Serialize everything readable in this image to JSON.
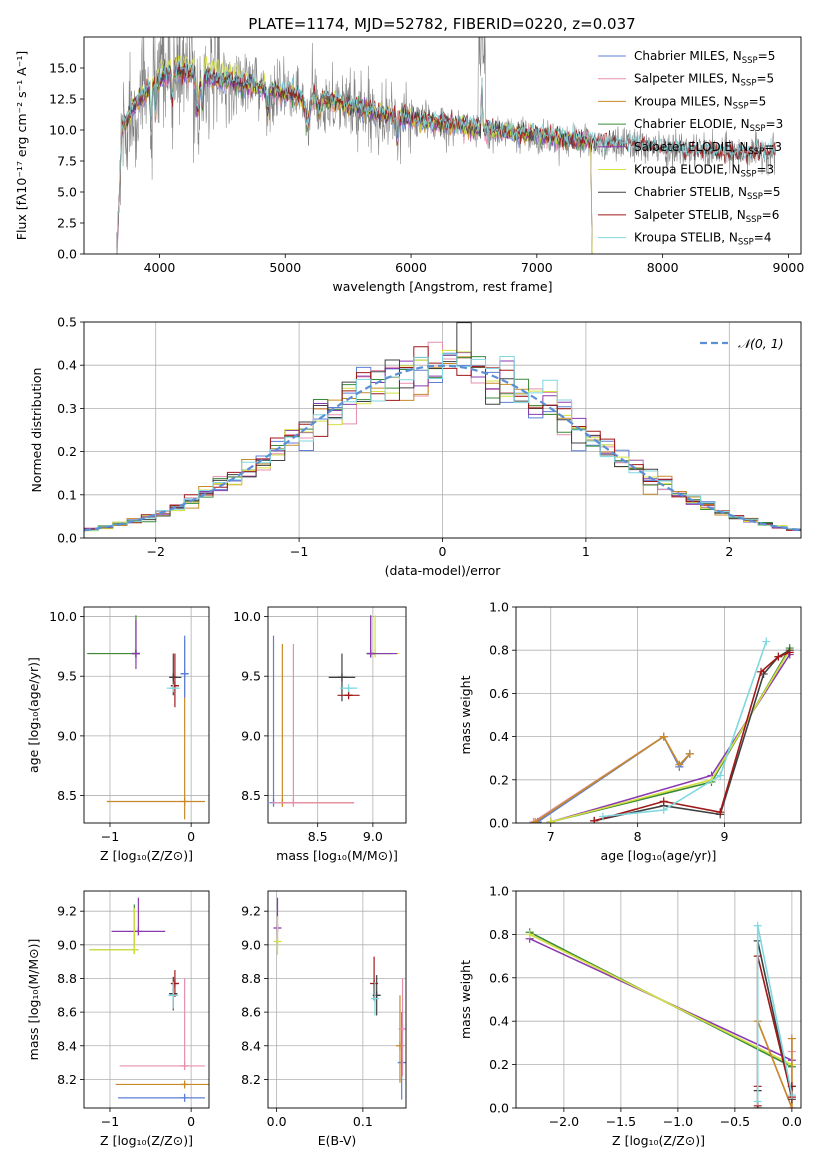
{
  "figure_title": "PLATE=1174, MJD=52782, FIBERID=0220, z=0.037",
  "colors": {
    "Chabrier MILES": "#5b7fd6",
    "Salpeter MILES": "#e58fb0",
    "Kroupa MILES": "#c88a28",
    "Chabrier ELODIE": "#3a8a3a",
    "Salpeter ELODIE": "#8a3ab0",
    "Kroupa ELODIE": "#d4e040",
    "Chabrier STELIB": "#404040",
    "Salpeter STELIB": "#a01818",
    "Kroupa STELIB": "#7fd7df",
    "normal_fit": "#5b8fd6",
    "data": "#808080",
    "grid": "#b0b0b0"
  },
  "chart_data": [
    {
      "id": "spectrum",
      "type": "line",
      "title": "PLATE=1174, MJD=52782, FIBERID=0220, z=0.037",
      "xlabel": "wavelength [Angstrom, rest frame]",
      "ylabel": "Flux [fλ10⁻¹⁷ erg cm⁻² s⁻¹ A⁻¹]",
      "xlim": [
        3400,
        9100
      ],
      "ylim": [
        0,
        17.5
      ],
      "xticks": [
        4000,
        5000,
        6000,
        7000,
        8000,
        9000
      ],
      "yticks": [
        0.0,
        2.5,
        5.0,
        7.5,
        10.0,
        12.5,
        15.0
      ],
      "grid": false,
      "legend_position": "top-right",
      "legend": [
        {
          "name": "Chabrier MILES",
          "nssp": "5"
        },
        {
          "name": "Salpeter MILES",
          "nssp": "5"
        },
        {
          "name": "Kroupa MILES",
          "nssp": "5"
        },
        {
          "name": "Chabrier ELODIE",
          "nssp": "3"
        },
        {
          "name": "Salpeter ELODIE",
          "nssp": "3"
        },
        {
          "name": "Kroupa ELODIE",
          "nssp": "3"
        },
        {
          "name": "Chabrier STELIB",
          "nssp": "5"
        },
        {
          "name": "Salpeter STELIB",
          "nssp": "6"
        },
        {
          "name": "Kroupa STELIB",
          "nssp": "4"
        }
      ],
      "continuum": {
        "x": [
          3680,
          3800,
          3950,
          4100,
          4300,
          4500,
          4800,
          5100,
          5400,
          5800,
          6200,
          6600,
          7000,
          7400,
          7800,
          8200,
          8600,
          8900
        ],
        "y": [
          9.5,
          12.0,
          13.6,
          14.8,
          14.4,
          14.0,
          13.4,
          12.7,
          12.3,
          11.2,
          10.6,
          10.0,
          9.6,
          9.1,
          8.7,
          8.3,
          8.1,
          8.2
        ]
      }
    },
    {
      "id": "residuals",
      "type": "line",
      "xlabel": "(data-model)/error",
      "ylabel": "Normed distribution",
      "xlim": [
        -2.5,
        2.5
      ],
      "ylim": [
        0,
        0.5
      ],
      "xticks": [
        -2,
        -1,
        0,
        1,
        2
      ],
      "yticks": [
        0.0,
        0.1,
        0.2,
        0.3,
        0.4,
        0.5
      ],
      "grid": true,
      "legend_position": "top-right",
      "legend": [
        "𝒩(0, 1)"
      ],
      "histogram_bins": [
        -2.5,
        2.5,
        50
      ]
    },
    {
      "id": "age-z",
      "type": "scatter",
      "xlabel": "Z [log₁₀(Z/Z⊙)]",
      "ylabel": "age  [log₁₀(age/yr)]",
      "xlim": [
        -1.32,
        0.22
      ],
      "ylim": [
        8.27,
        10.08
      ],
      "xticks": [
        -1,
        0
      ],
      "yticks": [
        8.5,
        9.0,
        9.5,
        10.0
      ],
      "grid": true,
      "points": [
        {
          "series": "Kroupa MILES",
          "x": -0.08,
          "y": 8.45,
          "xerr": [
            0.96,
            0.25
          ],
          "yerr": [
            0.15,
            1.35
          ]
        },
        {
          "series": "Chabrier MILES",
          "x": -0.08,
          "y": 9.52,
          "xerr": [
            0.05,
            0.05
          ],
          "yerr": [
            0.2,
            0.32
          ]
        },
        {
          "series": "Kroupa ELODIE",
          "x": -0.68,
          "y": 9.69,
          "xerr": [
            0.6,
            0.0
          ],
          "yerr": [
            0.0,
            0.32
          ]
        },
        {
          "series": "Chabrier ELODIE",
          "x": -0.68,
          "y": 9.69,
          "xerr": [
            0.6,
            0.0
          ],
          "yerr": [
            0.0,
            0.32
          ]
        },
        {
          "series": "Salpeter ELODIE",
          "x": -0.68,
          "y": 9.69,
          "xerr": [
            0.0,
            0.05
          ],
          "yerr": [
            0.13,
            0.28
          ]
        },
        {
          "series": "Chabrier STELIB",
          "x": -0.22,
          "y": 9.49,
          "xerr": [
            0.05,
            0.1
          ],
          "yerr": [
            0.15,
            0.2
          ]
        },
        {
          "series": "Salpeter STELIB",
          "x": -0.2,
          "y": 9.42,
          "xerr": [
            0.05,
            0.05
          ],
          "yerr": [
            0.18,
            0.27
          ]
        },
        {
          "series": "Kroupa STELIB",
          "x": -0.22,
          "y": 9.4,
          "xerr": [
            0.08,
            0.08
          ],
          "yerr": [
            0.0,
            0.0
          ]
        }
      ]
    },
    {
      "id": "age-mass",
      "type": "scatter",
      "xlabel": "mass [log₁₀(M/M⊙)]",
      "ylabel": "",
      "xlim": [
        8.05,
        9.3
      ],
      "ylim": [
        8.27,
        10.08
      ],
      "xticks": [
        8.5,
        9.0
      ],
      "yticks": [
        8.5,
        9.0,
        9.5,
        10.0
      ],
      "grid": true,
      "points": [
        {
          "series": "Chabrier MILES",
          "x": 8.1,
          "y": 8.44,
          "xerr": [
            0.0,
            0.0
          ],
          "yerr": [
            0.0,
            1.4
          ]
        },
        {
          "series": "Kroupa MILES",
          "x": 8.18,
          "y": 8.44,
          "xerr": [
            0.0,
            0.65
          ],
          "yerr": [
            0.0,
            1.33
          ]
        },
        {
          "series": "Salpeter MILES",
          "x": 8.28,
          "y": 8.44,
          "xerr": [
            0.2,
            0.55
          ],
          "yerr": [
            0.0,
            1.33
          ]
        },
        {
          "series": "Kroupa ELODIE",
          "x": 9.02,
          "y": 9.69,
          "xerr": [
            0.0,
            0.22
          ],
          "yerr": [
            0.0,
            0.32
          ]
        },
        {
          "series": "Chabrier ELODIE",
          "x": 8.98,
          "y": 9.69,
          "xerr": [
            0.0,
            0.2
          ],
          "yerr": [
            0.0,
            0.32
          ]
        },
        {
          "series": "Salpeter ELODIE",
          "x": 8.98,
          "y": 9.69,
          "xerr": [
            0.0,
            0.24
          ],
          "yerr": [
            0.0,
            0.32
          ]
        },
        {
          "series": "Chabrier STELIB",
          "x": 8.72,
          "y": 9.49,
          "xerr": [
            0.12,
            0.12
          ],
          "yerr": [
            0.2,
            0.2
          ]
        },
        {
          "series": "Salpeter STELIB",
          "x": 8.78,
          "y": 9.34,
          "xerr": [
            0.1,
            0.1
          ],
          "yerr": [
            0.0,
            0.0
          ]
        },
        {
          "series": "Kroupa STELIB",
          "x": 8.78,
          "y": 9.4,
          "xerr": [
            0.08,
            0.08
          ],
          "yerr": [
            0.0,
            0.0
          ]
        }
      ]
    },
    {
      "id": "weight-age",
      "type": "line",
      "xlabel": "age  [log₁₀(age/yr)]",
      "ylabel": "mass weight",
      "xlim": [
        6.6,
        9.88
      ],
      "ylim": [
        0,
        1.0
      ],
      "xticks": [
        7,
        8,
        9
      ],
      "yticks": [
        0.0,
        0.2,
        0.4,
        0.6,
        0.8,
        1.0
      ],
      "grid": true,
      "series": [
        {
          "name": "Salpeter MILES",
          "x": [
            6.8,
            8.3,
            8.48,
            8.6
          ],
          "y": [
            0.005,
            0.4,
            0.26,
            0.32
          ]
        },
        {
          "name": "Chabrier MILES",
          "x": [
            6.85,
            8.3,
            8.48,
            8.6
          ],
          "y": [
            0.005,
            0.4,
            0.26,
            0.32
          ]
        },
        {
          "name": "Kroupa MILES",
          "x": [
            6.82,
            8.3,
            8.48,
            8.6
          ],
          "y": [
            0.005,
            0.4,
            0.27,
            0.32
          ]
        },
        {
          "name": "Chabrier ELODIE",
          "x": [
            7.0,
            8.85,
            9.75
          ],
          "y": [
            0.005,
            0.19,
            0.81
          ]
        },
        {
          "name": "Salpeter ELODIE",
          "x": [
            7.0,
            8.85,
            9.75
          ],
          "y": [
            0.005,
            0.22,
            0.78
          ]
        },
        {
          "name": "Kroupa ELODIE",
          "x": [
            7.0,
            8.85,
            9.75
          ],
          "y": [
            0.005,
            0.2,
            0.8
          ]
        },
        {
          "name": "Chabrier STELIB",
          "x": [
            7.5,
            8.3,
            8.95,
            9.45,
            9.62,
            9.75
          ],
          "y": [
            0.01,
            0.08,
            0.04,
            0.69,
            0.77,
            0.8
          ]
        },
        {
          "name": "Salpeter STELIB",
          "x": [
            7.5,
            8.3,
            8.95,
            9.42,
            9.62,
            9.75
          ],
          "y": [
            0.01,
            0.1,
            0.05,
            0.7,
            0.77,
            0.79
          ]
        },
        {
          "name": "Kroupa STELIB",
          "x": [
            7.6,
            8.3,
            8.95,
            9.48
          ],
          "y": [
            0.03,
            0.06,
            0.22,
            0.84
          ]
        }
      ]
    },
    {
      "id": "mass-z",
      "type": "scatter",
      "xlabel": "Z [log₁₀(Z/Z⊙)]",
      "ylabel": "mass [log₁₀(M/M⊙)]",
      "xlim": [
        -1.32,
        0.22
      ],
      "ylim": [
        8.03,
        9.32
      ],
      "xticks": [
        -1,
        0
      ],
      "yticks": [
        8.2,
        8.4,
        8.6,
        8.8,
        9.0,
        9.2
      ],
      "grid": true,
      "points": [
        {
          "series": "Chabrier MILES",
          "x": -0.08,
          "y": 8.09,
          "xerr": [
            0.82,
            0.25
          ],
          "yerr": [
            0.0,
            0.0
          ]
        },
        {
          "series": "Kroupa MILES",
          "x": -0.08,
          "y": 8.17,
          "xerr": [
            0.85,
            0.3
          ],
          "yerr": [
            0.0,
            0.0
          ]
        },
        {
          "series": "Salpeter MILES",
          "x": -0.08,
          "y": 8.28,
          "xerr": [
            0.8,
            0.25
          ],
          "yerr": [
            0.0,
            0.52
          ]
        },
        {
          "series": "Salpeter ELODIE",
          "x": -0.65,
          "y": 9.08,
          "xerr": [
            0.33,
            0.33
          ],
          "yerr": [
            0.0,
            0.2
          ]
        },
        {
          "series": "Chabrier ELODIE",
          "x": -0.7,
          "y": 8.97,
          "xerr": [
            0.55,
            0.0
          ],
          "yerr": [
            0.0,
            0.27
          ]
        },
        {
          "series": "Kroupa ELODIE",
          "x": -0.7,
          "y": 8.97,
          "xerr": [
            0.55,
            0.0
          ],
          "yerr": [
            0.0,
            0.25
          ]
        },
        {
          "series": "Chabrier STELIB",
          "x": -0.22,
          "y": 8.71,
          "xerr": [
            0.05,
            0.05
          ],
          "yerr": [
            0.1,
            0.1
          ]
        },
        {
          "series": "Salpeter STELIB",
          "x": -0.2,
          "y": 8.77,
          "xerr": [
            0.05,
            0.05
          ],
          "yerr": [
            0.08,
            0.08
          ]
        },
        {
          "series": "Kroupa STELIB",
          "x": -0.22,
          "y": 8.7,
          "xerr": [
            0.06,
            0.06
          ],
          "yerr": [
            0.08,
            0.08
          ]
        }
      ]
    },
    {
      "id": "mass-ebv",
      "type": "scatter",
      "xlabel": "E(B-V)",
      "ylabel": "",
      "xlim": [
        -0.01,
        0.15
      ],
      "ylim": [
        8.03,
        9.32
      ],
      "xticks": [
        0.0,
        0.1
      ],
      "yticks": [
        8.2,
        8.4,
        8.6,
        8.8,
        9.0,
        9.2
      ],
      "grid": true,
      "points": [
        {
          "series": "Salpeter ELODIE",
          "x": 0.001,
          "y": 9.1,
          "xerr": [
            0.0,
            0.0
          ],
          "yerr": [
            0.1,
            0.18
          ]
        },
        {
          "series": "Kroupa ELODIE",
          "x": 0.001,
          "y": 9.02,
          "xerr": [
            0.0,
            0.0
          ],
          "yerr": [
            0.08,
            0.15
          ]
        },
        {
          "series": "Chabrier STELIB",
          "x": 0.116,
          "y": 8.7,
          "xerr": [
            0.0,
            0.0
          ],
          "yerr": [
            0.12,
            0.12
          ]
        },
        {
          "series": "Salpeter STELIB",
          "x": 0.113,
          "y": 8.77,
          "xerr": [
            0.0,
            0.0
          ],
          "yerr": [
            0.1,
            0.16
          ]
        },
        {
          "series": "Kroupa STELIB",
          "x": 0.114,
          "y": 8.68,
          "xerr": [
            0.0,
            0.0
          ],
          "yerr": [
            0.1,
            0.1
          ]
        },
        {
          "series": "Chabrier MILES",
          "x": 0.145,
          "y": 8.3,
          "xerr": [
            0.0,
            0.0
          ],
          "yerr": [
            0.22,
            0.3
          ]
        },
        {
          "series": "Kroupa MILES",
          "x": 0.143,
          "y": 8.4,
          "xerr": [
            0.0,
            0.0
          ],
          "yerr": [
            0.22,
            0.3
          ]
        },
        {
          "series": "Salpeter MILES",
          "x": 0.146,
          "y": 8.5,
          "xerr": [
            0.0,
            0.0
          ],
          "yerr": [
            0.28,
            0.3
          ]
        }
      ]
    },
    {
      "id": "weight-z",
      "type": "line",
      "xlabel": "Z [log₁₀(Z/Z⊙)]",
      "ylabel": "mass weight",
      "xlim": [
        -2.42,
        0.08
      ],
      "ylim": [
        0,
        1.0
      ],
      "xticks": [
        -2.0,
        -1.5,
        -1.0,
        -0.5,
        0.0
      ],
      "yticks": [
        0.0,
        0.2,
        0.4,
        0.6,
        0.8,
        1.0
      ],
      "grid": true,
      "series": [
        {
          "name": "Chabrier ELODIE",
          "x": [
            -2.3,
            0.0
          ],
          "y": [
            0.81,
            0.19
          ]
        },
        {
          "name": "Salpeter ELODIE",
          "x": [
            -2.3,
            0.0
          ],
          "y": [
            0.78,
            0.22
          ]
        },
        {
          "name": "Kroupa ELODIE",
          "x": [
            -2.3,
            0.0
          ],
          "y": [
            0.8,
            0.2
          ]
        },
        {
          "name": "Salpeter MILES",
          "x": [
            -0.3,
            0.0,
            0.0,
            0.0
          ],
          "y": [
            0.4,
            0.0,
            0.26,
            0.32
          ]
        },
        {
          "name": "Kroupa MILES",
          "x": [
            -0.3,
            0.0,
            0.0
          ],
          "y": [
            0.4,
            0.0,
            0.32
          ]
        },
        {
          "name": "Chabrier STELIB",
          "x": [
            -0.3,
            -0.3,
            -0.3,
            0.0,
            0.0
          ],
          "y": [
            0.0,
            0.08,
            0.77,
            0.04,
            0.1
          ]
        },
        {
          "name": "Salpeter STELIB",
          "x": [
            -0.3,
            -0.3,
            -0.3,
            0.0,
            0.0
          ],
          "y": [
            0.01,
            0.1,
            0.7,
            0.05,
            0.1
          ]
        },
        {
          "name": "Kroupa STELIB",
          "x": [
            -0.3,
            -0.3,
            0.0
          ],
          "y": [
            0.03,
            0.84,
            0.06
          ]
        }
      ]
    }
  ]
}
